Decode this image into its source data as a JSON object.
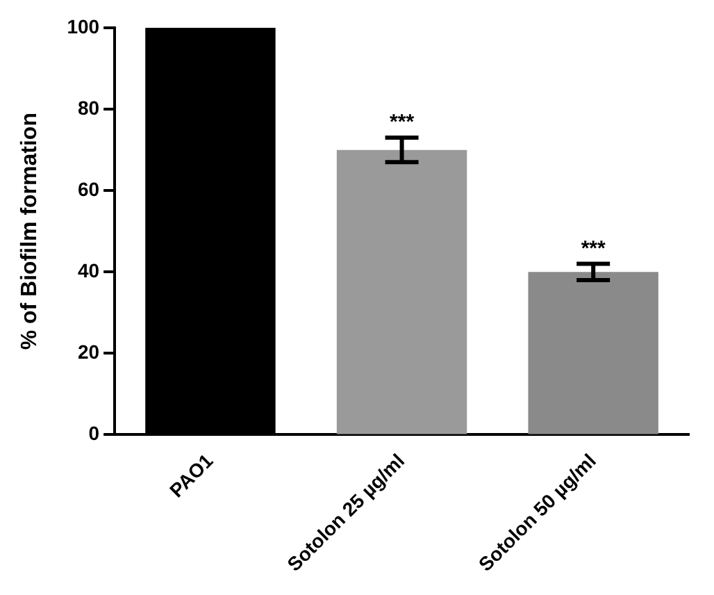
{
  "chart_data": {
    "type": "bar",
    "ylabel": "% of Biofilm formation",
    "categories": [
      "PAO1",
      "Sotolon 25 µg/ml",
      "Sotolon 50 µg/ml"
    ],
    "values": [
      100,
      70,
      40
    ],
    "errors": [
      null,
      3,
      2
    ],
    "colors": [
      "#000000",
      "#9a9a9a",
      "#8a8a8a"
    ],
    "ylim": [
      0,
      100
    ],
    "yticks": [
      0,
      20,
      40,
      60,
      80,
      100
    ],
    "grid": false,
    "legend": false,
    "annotations": [
      {
        "text": "***",
        "x": "Sotolon 25 µg/ml",
        "y": 73
      },
      {
        "text": "***",
        "x": "Sotolon 50 µg/ml",
        "y": 42
      }
    ]
  }
}
